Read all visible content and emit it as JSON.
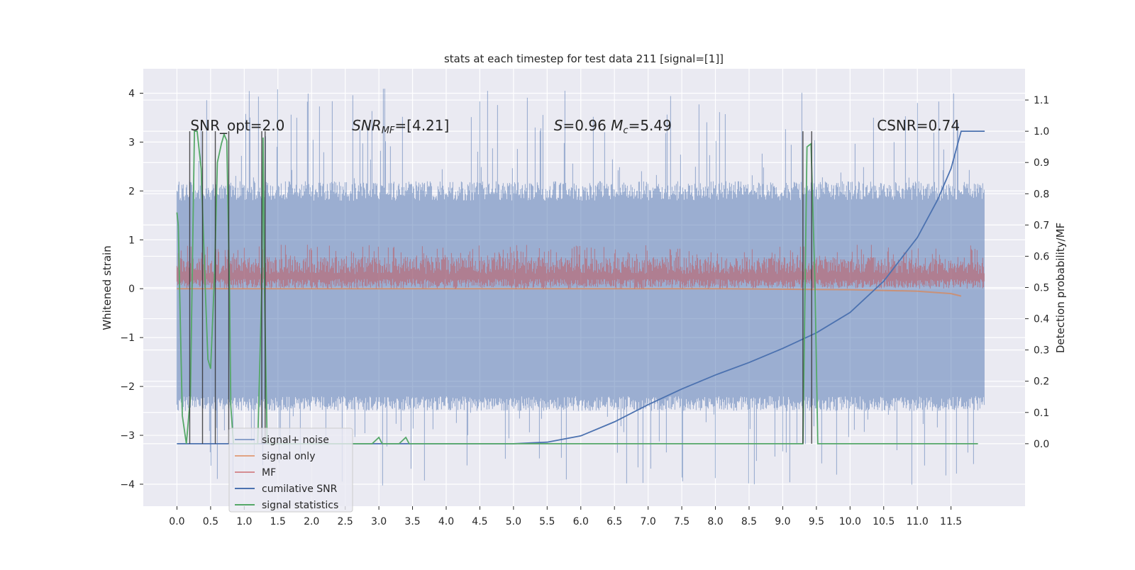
{
  "chart_data": {
    "type": "line",
    "title": "stats at each timestep for test data 211 [signal=[1]]",
    "xlabel": "",
    "ylabel": "Whitened strain",
    "y2label": "Detection probability/MF",
    "xlim": [
      -0.5,
      12.6
    ],
    "ylim": [
      -4.45,
      4.5
    ],
    "y2lim": [
      -0.2,
      1.2
    ],
    "xticks": [
      "0.0",
      "0.5",
      "1.0",
      "1.5",
      "2.0",
      "2.5",
      "3.0",
      "3.5",
      "4.0",
      "4.5",
      "5.0",
      "5.5",
      "6.0",
      "6.5",
      "7.0",
      "7.5",
      "8.0",
      "8.5",
      "9.0",
      "9.5",
      "10.0",
      "10.5",
      "11.0",
      "11.5"
    ],
    "yticks": [
      "4",
      "3",
      "2",
      "1",
      "0",
      "−1",
      "−2",
      "−3",
      "−4"
    ],
    "y2ticks": [
      "1.1",
      "1.0",
      "0.9",
      "0.8",
      "0.7",
      "0.6",
      "0.5",
      "0.4",
      "0.3",
      "0.2",
      "0.1",
      "0.0"
    ],
    "grid": true,
    "legend_position": "lower-left",
    "annotations": [
      {
        "text": "SNR_opt=2.0",
        "x": 0.2
      },
      {
        "text": "SNR_MF=[4.21]",
        "x": 2.6,
        "main": "SNR",
        "sub": "MF",
        "rest": "=[4.21]"
      },
      {
        "text": "S=0.96   M_c=5.49",
        "x": 5.6,
        "s_main": "S",
        "s_rest": "=0.96",
        "m_main": "M",
        "m_sub": "c",
        "m_rest": "=5.49"
      },
      {
        "text": "CSNR=0.74",
        "x": 10.4
      }
    ],
    "series": [
      {
        "name": "signal+ noise",
        "color": "#4c72b0",
        "opacity": 0.5,
        "axis": "left",
        "range": [
          -2.3,
          2.2
        ],
        "outlier_range": [
          -4.1,
          4.1
        ]
      },
      {
        "name": "signal only",
        "color": "#dd8452",
        "opacity": 0.7,
        "axis": "left",
        "x": [
          0.0,
          8.0,
          10.0,
          11.0,
          11.5,
          11.65
        ],
        "y": [
          0.0,
          0.0,
          -0.02,
          -0.05,
          -0.1,
          -0.15
        ]
      },
      {
        "name": "MF",
        "color": "#c44e52",
        "opacity": 0.5,
        "axis": "left",
        "range": [
          0.0,
          0.65
        ],
        "outlier_range": [
          -0.1,
          0.9
        ]
      },
      {
        "name": "cumilative SNR",
        "color": "#4c72b0",
        "opacity": 1,
        "axis": "right",
        "x": [
          0.0,
          5.0,
          5.5,
          6.0,
          6.5,
          7.0,
          7.5,
          8.0,
          8.5,
          9.0,
          9.5,
          10.0,
          10.5,
          11.0,
          11.3,
          11.5,
          11.65,
          11.66,
          12.0
        ],
        "y": [
          0.0,
          0.0,
          0.005,
          0.025,
          0.07,
          0.125,
          0.175,
          0.22,
          0.26,
          0.305,
          0.355,
          0.42,
          0.52,
          0.66,
          0.78,
          0.88,
          1.0,
          1.0,
          1.0
        ]
      },
      {
        "name": "signal statistics",
        "color": "#55a868",
        "opacity": 1,
        "axis": "right",
        "x": [
          0.0,
          0.02,
          0.08,
          0.14,
          0.2,
          0.26,
          0.3,
          0.36,
          0.42,
          0.46,
          0.5,
          0.56,
          0.6,
          0.66,
          0.7,
          0.74,
          0.78,
          0.8,
          0.84,
          0.9,
          1.0,
          1.2,
          1.26,
          1.28,
          1.3,
          1.34,
          1.4,
          2.0,
          2.9,
          3.0,
          3.05,
          3.1,
          3.3,
          3.4,
          3.45,
          3.5,
          4.0,
          6.0,
          9.3,
          9.36,
          9.42,
          9.48,
          9.52,
          9.56,
          10.0,
          11.0,
          11.9
        ],
        "y": [
          0.74,
          0.7,
          0.09,
          0.0,
          0.15,
          1.0,
          1.0,
          0.88,
          0.5,
          0.27,
          0.24,
          0.55,
          0.9,
          0.96,
          0.99,
          0.97,
          0.5,
          0.12,
          0.0,
          0.0,
          0.0,
          0.0,
          0.5,
          0.98,
          0.5,
          0.0,
          0.0,
          0.0,
          0.0,
          0.02,
          0.0,
          0.0,
          0.0,
          0.02,
          0.0,
          0.0,
          0.0,
          0.0,
          0.0,
          0.95,
          0.96,
          0.5,
          0.0,
          0.0,
          0.0,
          0.0,
          0.0
        ]
      },
      {
        "name": "marker lines",
        "color": "#333333",
        "opacity": 0.85,
        "axis": "right",
        "hidden_in_legend": true,
        "x": [
          0.19,
          0.38,
          0.57,
          0.77,
          1.26,
          1.31,
          9.3,
          9.43
        ],
        "y_top": 1.0
      }
    ]
  }
}
